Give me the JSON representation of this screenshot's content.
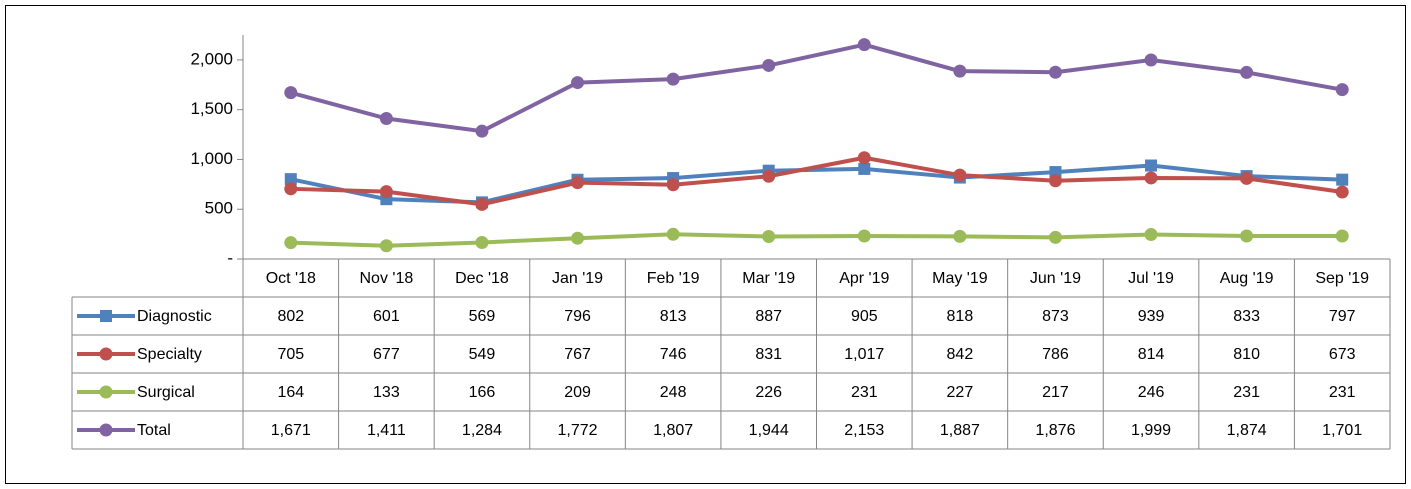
{
  "chart_data": {
    "type": "line",
    "categories": [
      "Oct '18",
      "Nov '18",
      "Dec '18",
      "Jan '19",
      "Feb '19",
      "Mar '19",
      "Apr '19",
      "May '19",
      "Jun '19",
      "Jul '19",
      "Aug '19",
      "Sep '19"
    ],
    "series": [
      {
        "name": "Diagnostic",
        "color": "#4f81bd",
        "marker": "square",
        "values": [
          802,
          601,
          569,
          796,
          813,
          887,
          905,
          818,
          873,
          939,
          833,
          797
        ]
      },
      {
        "name": "Specialty",
        "color": "#c0504d",
        "marker": "circle",
        "values": [
          705,
          677,
          549,
          767,
          746,
          831,
          1017,
          842,
          786,
          814,
          810,
          673
        ],
        "value_labels": [
          "705",
          "677",
          "549",
          "767",
          "746",
          "831",
          "1,017",
          "842",
          "786",
          "814",
          "810",
          "673"
        ]
      },
      {
        "name": "Surgical",
        "color": "#9bbb59",
        "marker": "circle",
        "values": [
          164,
          133,
          166,
          209,
          248,
          226,
          231,
          227,
          217,
          246,
          231,
          231
        ]
      },
      {
        "name": "Total",
        "color": "#8064a2",
        "marker": "circle",
        "values": [
          1671,
          1411,
          1284,
          1772,
          1807,
          1944,
          2153,
          1887,
          1876,
          1999,
          1874,
          1701
        ],
        "value_labels": [
          "1,671",
          "1,411",
          "1,284",
          "1,772",
          "1,807",
          "1,944",
          "2,153",
          "1,887",
          "1,876",
          "1,999",
          "1,874",
          "1,701"
        ]
      }
    ],
    "ylim": [
      0,
      2250
    ],
    "yticks": [
      {
        "value": 0,
        "label": "-"
      },
      500,
      {
        "value": 1000,
        "label": "1,000"
      },
      {
        "value": 1500,
        "label": "1,500"
      },
      {
        "value": 2000,
        "label": "2,000"
      }
    ],
    "grid": false,
    "data_table": true
  }
}
